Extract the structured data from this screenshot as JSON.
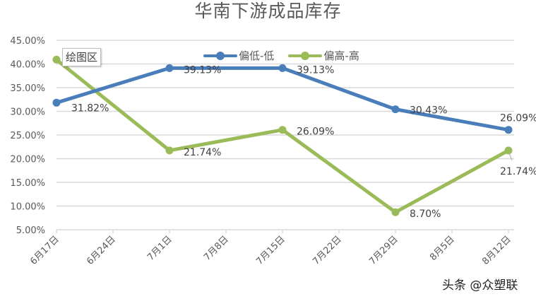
{
  "chart": {
    "title": "华南下游成品库存",
    "tooltip": "绘图区",
    "watermark": "头条 @众塑联",
    "colors": {
      "blue": "#4a7ebb",
      "green": "#9bbb59",
      "grid": "#d9d9d9",
      "text": "#595959"
    },
    "y_ticks": [
      "45.00%",
      "40.00%",
      "35.00%",
      "30.00%",
      "25.00%",
      "20.00%",
      "15.00%",
      "10.00%",
      "5.00%"
    ],
    "x_ticks": [
      "6月17日",
      "6月24日",
      "7月1日",
      "7月8日",
      "7月15日",
      "7月22日",
      "7月29日",
      "8月5日",
      "8月12日"
    ],
    "legend": [
      {
        "name": "偏低-低",
        "color": "#4a7ebb"
      },
      {
        "name": "偏高-高",
        "color": "#9bbb59"
      }
    ],
    "labels": {
      "blue": [
        "31.82%",
        "39.13%",
        "39.13%",
        "30.43%",
        "26.09%"
      ],
      "green": [
        "",
        "21.74%",
        "26.09%",
        "8.70%",
        "21.74%"
      ]
    }
  },
  "chart_data": {
    "type": "line",
    "title": "华南下游成品库存",
    "xlabel": "",
    "ylabel": "",
    "x": [
      "6月17日",
      "7月1日",
      "7月15日",
      "7月29日",
      "8月12日"
    ],
    "x_axis_ticks": [
      "6月17日",
      "6月24日",
      "7月1日",
      "7月8日",
      "7月15日",
      "7月22日",
      "7月29日",
      "8月5日",
      "8月12日"
    ],
    "series": [
      {
        "name": "偏低-低",
        "color": "#4a7ebb",
        "values": [
          31.82,
          39.13,
          39.13,
          30.43,
          26.09
        ]
      },
      {
        "name": "偏高-高",
        "color": "#9bbb59",
        "values": [
          40.91,
          21.74,
          26.09,
          8.7,
          21.74
        ]
      }
    ],
    "ylim": [
      5,
      45
    ],
    "y_unit": "%",
    "y_tick_step": 5,
    "grid": true,
    "legend_position": "top",
    "data_labels": true
  }
}
